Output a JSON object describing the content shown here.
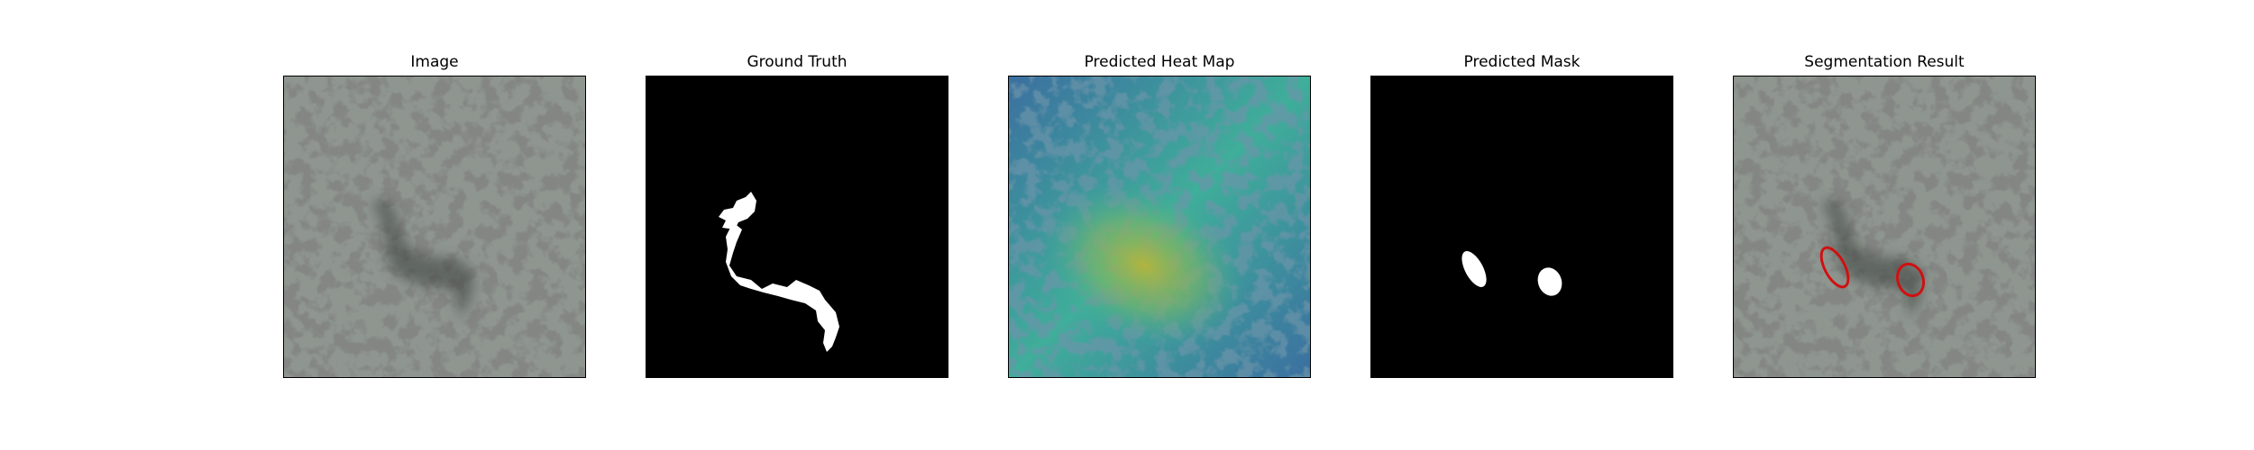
{
  "figure": {
    "panels": [
      {
        "title": "Image"
      },
      {
        "title": "Ground Truth"
      },
      {
        "title": "Predicted Heat Map"
      },
      {
        "title": "Predicted Mask"
      },
      {
        "title": "Segmentation Result"
      }
    ]
  },
  "colors": {
    "texture_base": "#8f9690",
    "texture_spot": "#3a3d3a",
    "mask_background": "#000000",
    "mask_foreground": "#ffffff",
    "heat_low": "#3b6fa0",
    "heat_mid": "#3fae9a",
    "heat_high": "#b8b53a",
    "contour": "#d01010"
  }
}
